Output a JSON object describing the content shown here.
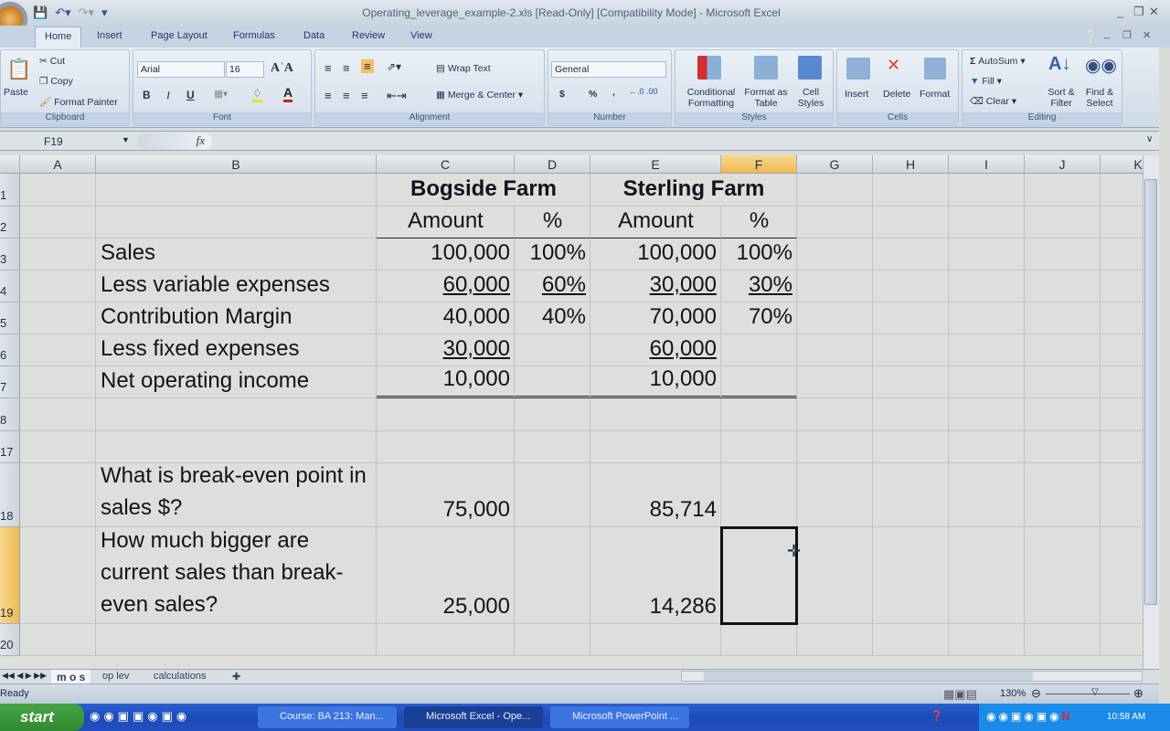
{
  "window": {
    "title": "Operating_leverage_example-2.xls  [Read-Only]  [Compatibility Mode] - Microsoft Excel"
  },
  "ribbon_tabs": [
    "Home",
    "Insert",
    "Page Layout",
    "Formulas",
    "Data",
    "Review",
    "View"
  ],
  "active_tab": "Home",
  "clipboard": {
    "paste": "Paste",
    "cut": "Cut",
    "copy": "Copy",
    "format_painter": "Format Painter",
    "label": "Clipboard"
  },
  "font": {
    "name": "Arial",
    "size": "16",
    "bold": "B",
    "italic": "I",
    "underline": "U",
    "label": "Font"
  },
  "alignment": {
    "wrap": "Wrap Text",
    "merge": "Merge & Center",
    "label": "Alignment"
  },
  "number": {
    "format": "General",
    "currency": "$",
    "percent": "%",
    "comma": ",",
    "label": "Number"
  },
  "styles": {
    "conditional": "Conditional Formatting",
    "format_table": "Format as Table",
    "cell_styles": "Cell Styles",
    "label": "Styles"
  },
  "cells": {
    "insert": "Insert",
    "delete": "Delete",
    "format": "Format",
    "label": "Cells"
  },
  "editing": {
    "autosum": "AutoSum",
    "fill": "Fill",
    "clear": "Clear",
    "sort": "Sort & Filter",
    "find": "Find & Select",
    "label": "Editing"
  },
  "formula_bar": {
    "name_box": "F19",
    "fx": "fx",
    "value": ""
  },
  "columns": [
    "A",
    "B",
    "C",
    "D",
    "E",
    "F",
    "G",
    "H",
    "I",
    "J",
    "K"
  ],
  "selected_cell": "F19",
  "rows": [
    {
      "num": "1",
      "cells": {
        "C": "Bogside Farm",
        "E": "Sterling Farm"
      }
    },
    {
      "num": "2",
      "cells": {
        "C": "Amount",
        "D": "%",
        "E": "Amount",
        "F": "%"
      }
    },
    {
      "num": "3",
      "cells": {
        "B": "Sales",
        "C": "100,000",
        "D": "100%",
        "E": "100,000",
        "F": "100%"
      }
    },
    {
      "num": "4",
      "cells": {
        "B": "Less variable expenses",
        "C": "60,000",
        "D": "60%",
        "E": "30,000",
        "F": "30%"
      }
    },
    {
      "num": "5",
      "cells": {
        "B": "Contribution Margin",
        "C": "40,000",
        "D": "40%",
        "E": "70,000",
        "F": "70%"
      }
    },
    {
      "num": "6",
      "cells": {
        "B": "Less fixed expenses",
        "C": "30,000",
        "E": "60,000"
      }
    },
    {
      "num": "7",
      "cells": {
        "B": "Net operating income",
        "C": "10,000",
        "E": "10,000"
      }
    },
    {
      "num": "8",
      "cells": {}
    },
    {
      "num": "17",
      "cells": {}
    },
    {
      "num": "18",
      "cells": {
        "B": "What is break-even point in sales $?",
        "C": "75,000",
        "E": "85,714"
      }
    },
    {
      "num": "19",
      "cells": {
        "B": "How much bigger are current sales than break-even sales?",
        "C": "25,000",
        "E": "14,286"
      }
    },
    {
      "num": "20",
      "cells": {}
    }
  ],
  "sheet_tabs": [
    "m o s",
    "op lev",
    "calculations"
  ],
  "active_sheet": "m o s",
  "status": {
    "text": "Ready",
    "zoom": "130%"
  },
  "taskbar": {
    "start": "start",
    "tasks": [
      {
        "label": "Course: BA 213: Man...",
        "active": false
      },
      {
        "label": "Microsoft Excel - Ope...",
        "active": true
      },
      {
        "label": "Microsoft PowerPoint ...",
        "active": false
      }
    ],
    "clock": "10:58 AM"
  }
}
